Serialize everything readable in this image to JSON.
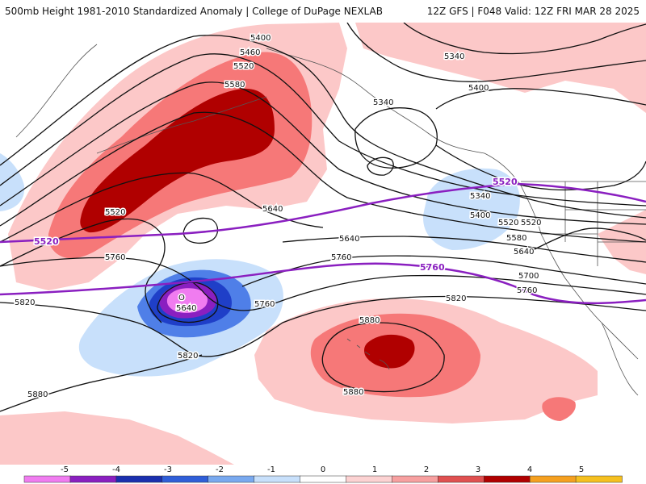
{
  "header": {
    "title_left": "500mb Height 1981-2010 Standardized Anomaly | College of DuPage NEXLAB",
    "title_right": "12Z GFS | F048 Valid: 12Z FRI MAR 28 2025"
  },
  "contour_labels": [
    "5400",
    "5460",
    "5520",
    "5580",
    "5640",
    "5340",
    "5400",
    "5340",
    "5340",
    "5400",
    "5520",
    "5580",
    "5640",
    "5700",
    "5760",
    "5820",
    "5640",
    "5760",
    "5640",
    "5760",
    "5820",
    "5820",
    "5880",
    "5880",
    "5880",
    "5760",
    "5520",
    "5520"
  ],
  "special_labels": {
    "line_5520_left": "5520",
    "line_5520_right": "5520",
    "line_5760": "5760"
  },
  "low_center": {
    "symbol": "O",
    "label": "5640"
  },
  "colors": {
    "contour": "#111111",
    "special_line": "#8a1fc0",
    "neg5": "#f07cf0",
    "neg4": "#8a1fc0",
    "neg3": "#1f3fc8",
    "neg2": "#4f7fe8",
    "neg1": "#c8e0fb",
    "pos1": "#fcc8c8",
    "pos2": "#f67878",
    "pos3": "#d02020",
    "pos4": "#b00000",
    "pos5": "#f5a020"
  },
  "colorbar": {
    "ticks": [
      "-5",
      "-4",
      "-3",
      "-2",
      "-1",
      "0",
      "1",
      "2",
      "3",
      "4",
      "5"
    ],
    "segments": [
      "#f07cf0",
      "#8a1fc0",
      "#1a2fae",
      "#2f5ed8",
      "#79a9ef",
      "#c8e0fb",
      "#ffffff",
      "#fcd2d2",
      "#f7a0a0",
      "#e05050",
      "#b00000",
      "#f5a020",
      "#f5c020"
    ]
  }
}
